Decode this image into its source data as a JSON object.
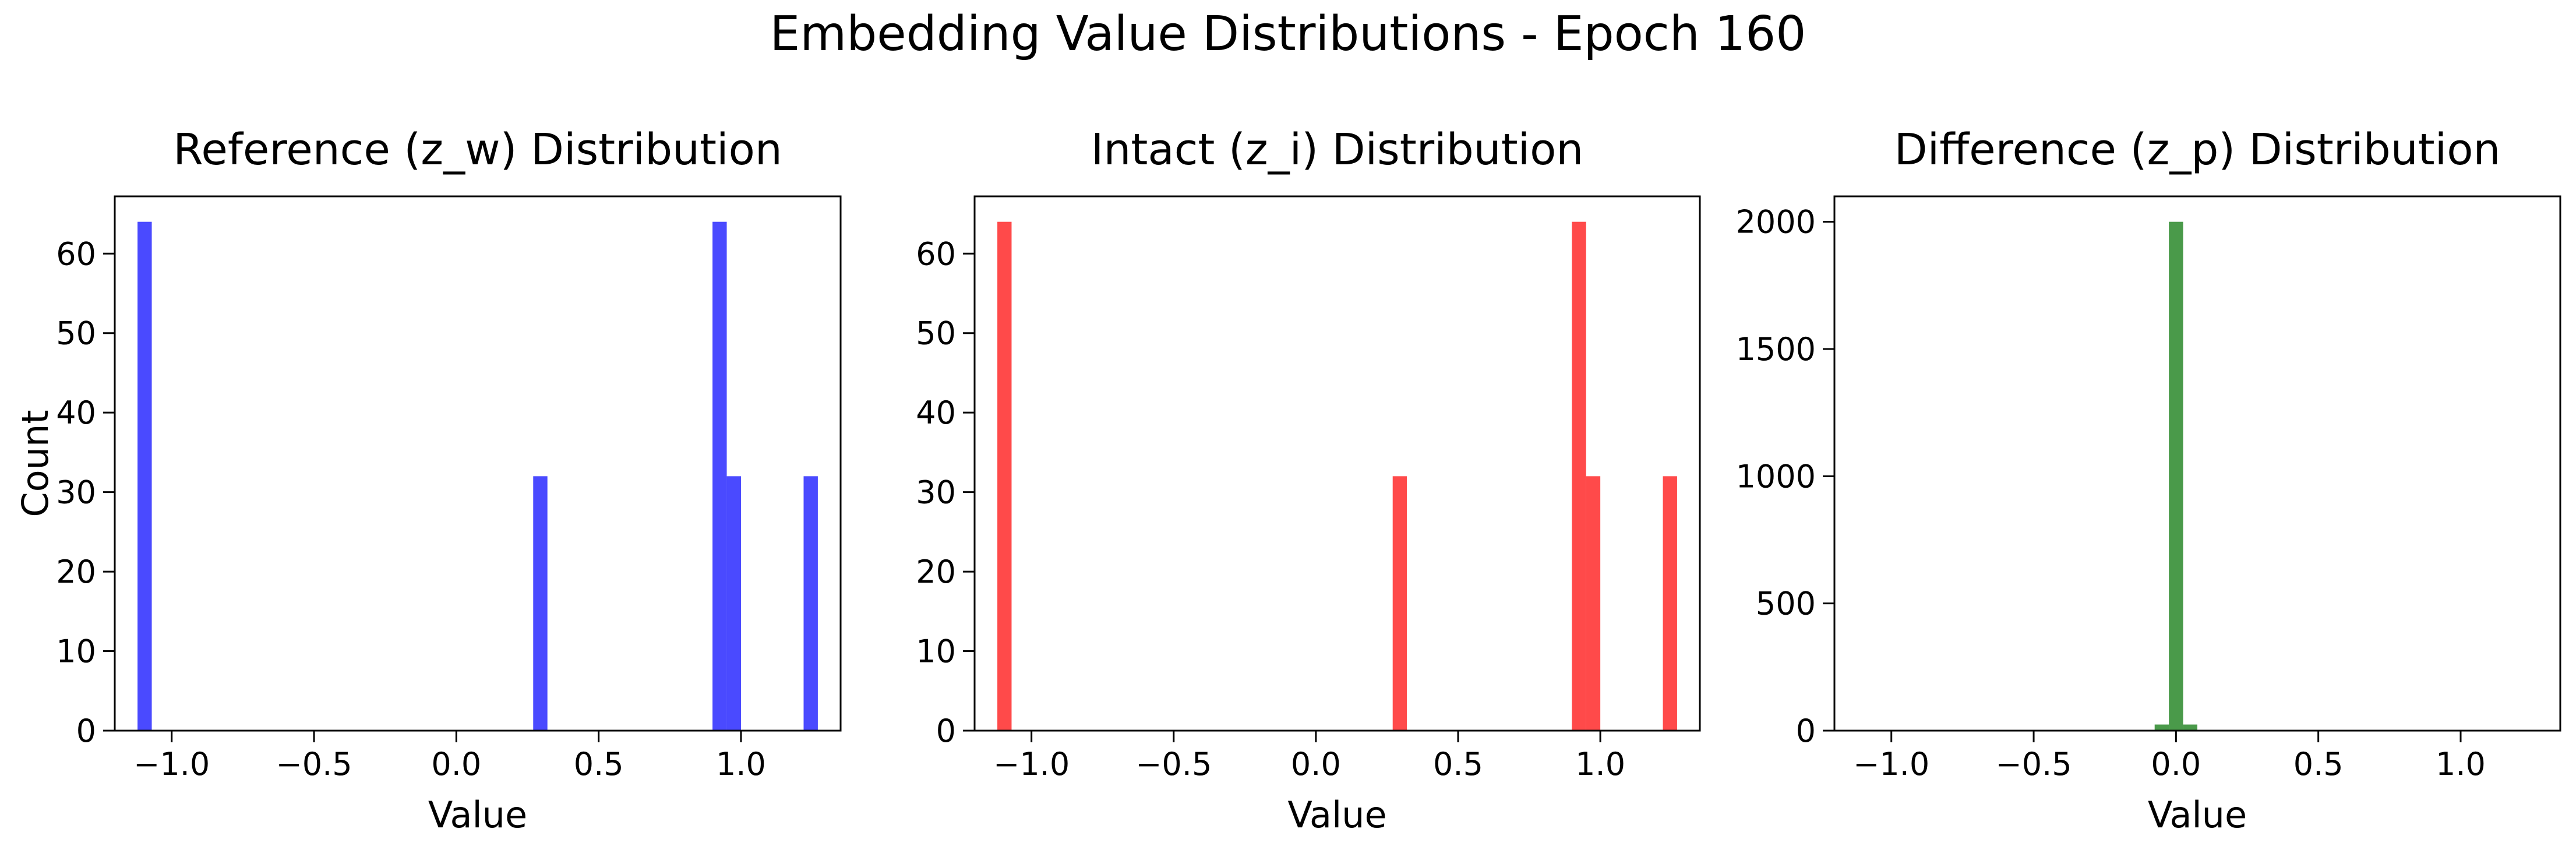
{
  "title": "Embedding Value Distributions - Epoch 160",
  "chart_data": [
    {
      "type": "bar",
      "title": "Reference (z_w) Distribution",
      "xlabel": "Value",
      "ylabel": "Count",
      "color": "#4a4aff",
      "xlim": [
        -1.2,
        1.35
      ],
      "ylim": [
        0,
        67.2
      ],
      "xticks": [
        -1.0,
        -0.5,
        0.0,
        0.5,
        1.0
      ],
      "xtick_labels": [
        "−1.0",
        "−0.5",
        "0.0",
        "0.5",
        "1.0"
      ],
      "yticks": [
        0,
        10,
        20,
        30,
        40,
        50,
        60
      ],
      "ytick_labels": [
        "0",
        "10",
        "20",
        "30",
        "40",
        "50",
        "60"
      ],
      "bin_edges": [
        -1.12,
        -1.07,
        0.27,
        0.32,
        0.9,
        0.95,
        1.0,
        1.22,
        1.27
      ],
      "bins": [
        {
          "x0": -1.12,
          "x1": -1.07,
          "count": 64
        },
        {
          "x0": 0.27,
          "x1": 0.32,
          "count": 32
        },
        {
          "x0": 0.9,
          "x1": 0.95,
          "count": 64
        },
        {
          "x0": 0.95,
          "x1": 1.0,
          "count": 32
        },
        {
          "x0": 1.22,
          "x1": 1.27,
          "count": 32
        }
      ]
    },
    {
      "type": "bar",
      "title": "Intact (z_i) Distribution",
      "xlabel": "Value",
      "ylabel": "",
      "color": "#ff4a4a",
      "xlim": [
        -1.2,
        1.35
      ],
      "ylim": [
        0,
        67.2
      ],
      "xticks": [
        -1.0,
        -0.5,
        0.0,
        0.5,
        1.0
      ],
      "xtick_labels": [
        "−1.0",
        "−0.5",
        "0.0",
        "0.5",
        "1.0"
      ],
      "yticks": [
        0,
        10,
        20,
        30,
        40,
        50,
        60
      ],
      "ytick_labels": [
        "0",
        "10",
        "20",
        "30",
        "40",
        "50",
        "60"
      ],
      "bins": [
        {
          "x0": -1.12,
          "x1": -1.07,
          "count": 64
        },
        {
          "x0": 0.27,
          "x1": 0.32,
          "count": 32
        },
        {
          "x0": 0.9,
          "x1": 0.95,
          "count": 64
        },
        {
          "x0": 0.95,
          "x1": 1.0,
          "count": 32
        },
        {
          "x0": 1.22,
          "x1": 1.27,
          "count": 32
        }
      ]
    },
    {
      "type": "bar",
      "title": "Difference (z_p) Distribution",
      "xlabel": "Value",
      "ylabel": "",
      "color": "#4a9a4a",
      "xlim": [
        -1.2,
        1.35
      ],
      "ylim": [
        0,
        2100
      ],
      "xticks": [
        -1.0,
        -0.5,
        0.0,
        0.5,
        1.0
      ],
      "xtick_labels": [
        "−1.0",
        "−0.5",
        "0.0",
        "0.5",
        "1.0"
      ],
      "yticks": [
        0,
        500,
        1000,
        1500,
        2000
      ],
      "ytick_labels": [
        "0",
        "500",
        "1000",
        "1500",
        "2000"
      ],
      "bins": [
        {
          "x0": -0.075,
          "x1": -0.025,
          "count": 24
        },
        {
          "x0": -0.025,
          "x1": 0.025,
          "count": 2000
        },
        {
          "x0": 0.025,
          "x1": 0.075,
          "count": 24
        }
      ]
    }
  ]
}
